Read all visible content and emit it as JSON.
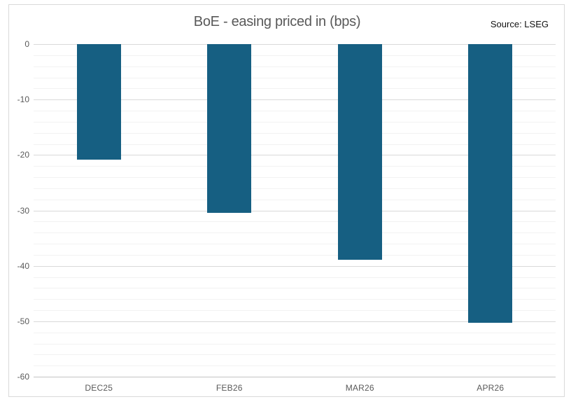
{
  "header": {
    "title": "BoE - easing priced in (bps)",
    "source": "Source: LSEG"
  },
  "chart_data": {
    "type": "bar",
    "title": "BoE - easing priced in (bps)",
    "source": "Source: LSEG",
    "categories": [
      "DEC25",
      "FEB26",
      "MAR26",
      "APR26"
    ],
    "values": [
      -20.8,
      -30.4,
      -38.9,
      -50.3
    ],
    "xlabel": "",
    "ylabel": "",
    "ylim": [
      -60,
      0
    ],
    "y_major_step": 10,
    "y_minor_step": 2,
    "y_tick_labels": [
      "0",
      "-10",
      "-20",
      "-30",
      "-40",
      "-50",
      "-60"
    ],
    "grid": "horizontal major and minor gridlines",
    "legend": "none",
    "bar_direction": "downward from zero",
    "colors": {
      "bar": "#165F82",
      "title_text": "#595959",
      "axis_text": "#595959",
      "source_text": "#111111",
      "major_grid": "#d9d9d9",
      "minor_grid": "#f2f2f2",
      "axis_line": "#c3c3c3",
      "frame_border": "#d9d9d9",
      "background": "#ffffff"
    }
  }
}
